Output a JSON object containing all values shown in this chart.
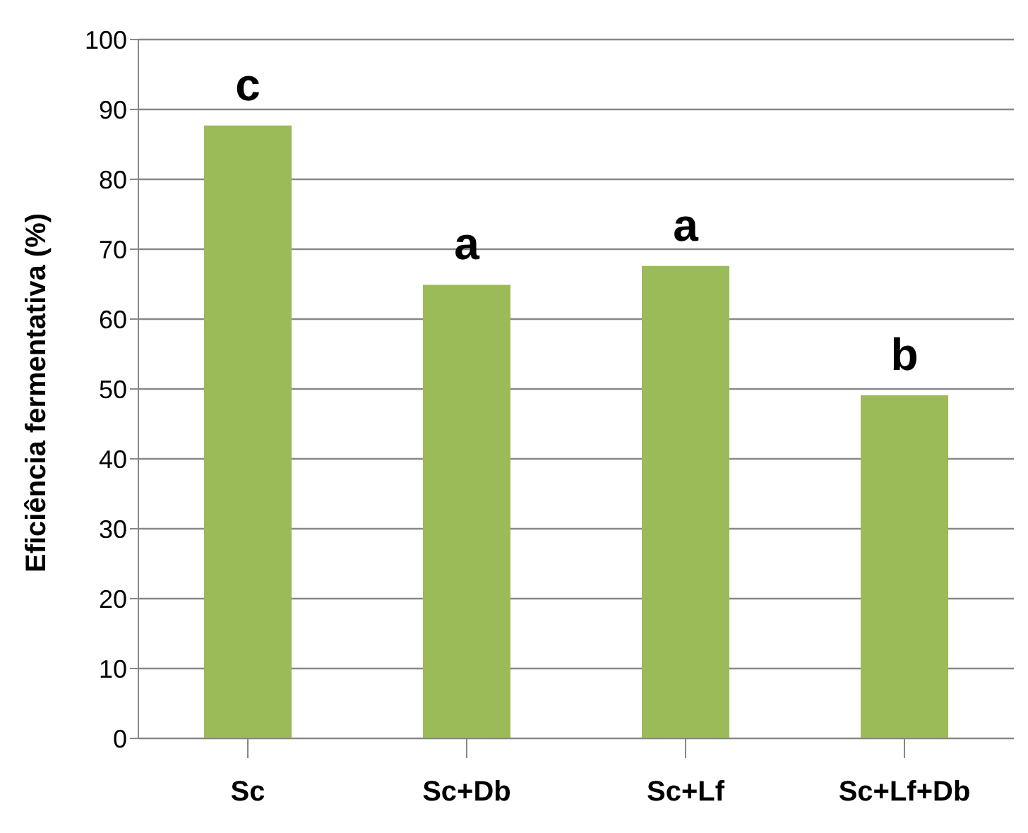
{
  "chart_data": {
    "type": "bar",
    "ylabel": "Eficiência fermentativa (%)",
    "categories": [
      "Sc",
      "Sc+Db",
      "Sc+Lf",
      "Sc+Lf+Db"
    ],
    "values": [
      87.7,
      64.9,
      67.6,
      49.1
    ],
    "color": "#9bbb59",
    "ylim": [
      0,
      100
    ],
    "yticks": [
      0,
      10,
      20,
      30,
      40,
      50,
      60,
      70,
      80,
      90,
      100
    ],
    "grid": "y",
    "legend": false,
    "annotations": [
      {
        "text": "c",
        "x": "Sc",
        "y": 87.7
      },
      {
        "text": "a",
        "x": "Sc+Db",
        "y": 64.9
      },
      {
        "text": "a",
        "x": "Sc+Lf",
        "y": 67.6
      },
      {
        "text": "b",
        "x": "Sc+Lf+Db",
        "y": 49.1
      }
    ]
  }
}
